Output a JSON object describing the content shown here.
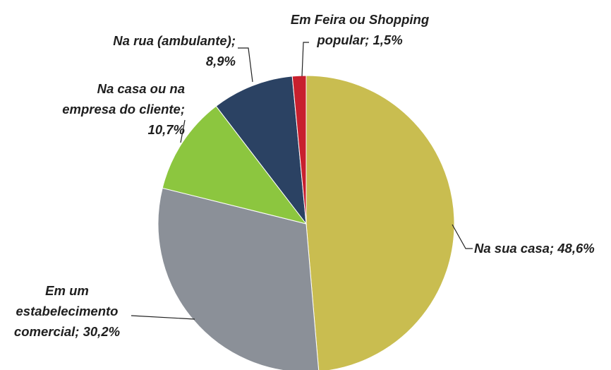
{
  "chart_data": {
    "type": "pie",
    "categories": [
      "Na sua casa;",
      "Em um estabelecimento comercial;",
      "Na casa ou na empresa do cliente;",
      "Na rua (ambulante);",
      "Em Feira ou Shopping popular;"
    ],
    "values": [
      48.6,
      30.2,
      10.7,
      8.9,
      1.5
    ],
    "value_labels": [
      "48,6%",
      "30,2%",
      "10,7%",
      "8,9%",
      "1,5%"
    ],
    "colors": [
      "#c9bd50",
      "#8b9098",
      "#8cc63f",
      "#2b4263",
      "#c8202e"
    ]
  }
}
